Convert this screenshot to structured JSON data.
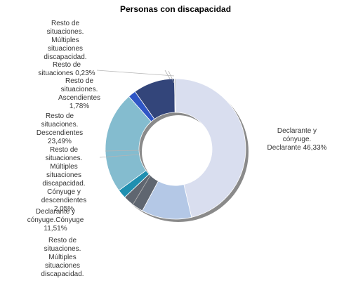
{
  "chart_data": {
    "type": "pie",
    "title": "Personas con discapacidad",
    "slices": [
      {
        "label": "Declarante y cónyuge. Declarante",
        "value": 46.33,
        "display": "Declarante y\ncónyuge.\nDeclarante 46,33%",
        "color": "#d9deef"
      },
      {
        "label": "Declarante y cónyuge.Cónyuge",
        "value": 11.51,
        "display": "Declarante y\ncónyuge.Cónyuge\n11,51%",
        "color": "#b4c8e6"
      },
      {
        "label": "Resto de situaciones. Múltiples situaciones discapacidad.",
        "value": 5.05,
        "display": "Resto de\nsituaciones.\nMúltiples\nsituaciones\ndiscapacidad.",
        "color": "#5f6670"
      },
      {
        "label": "Resto de situaciones. Múltiples situaciones discapacidad. Cónyuge y descendientes",
        "value": 2.05,
        "display": "Resto de\nsituaciones.\nMúltiples\nsituaciones\ndiscapacidad.\nCónyuge y\ndescendientes\n2,05%",
        "color": "#1f8fb0"
      },
      {
        "label": "Resto de situaciones. Descendientes",
        "value": 23.49,
        "display": "Resto de\nsituaciones.\nDescendientes\n23,49%",
        "color": "#84bccf"
      },
      {
        "label": "Resto de situaciones. Ascendientes",
        "value": 1.78,
        "display": "Resto de\nsituaciones.\nAscendientes\n1,78%",
        "color": "#2f56c6"
      },
      {
        "label": "Resto de situaciones",
        "value": 9.56,
        "display": "",
        "color": "#33457a"
      },
      {
        "label": "Resto de situaciones",
        "value": 0.23,
        "display": "Resto de\nsituaciones 0,23%",
        "color": "#7c8288"
      },
      {
        "label": "Resto de situaciones. Múltiples situaciones discapacidad.",
        "value": 0.0,
        "display": "Resto de\nsituaciones.\nMúltiples\nsituaciones\ndiscapacidad.",
        "color": "#888888"
      }
    ]
  }
}
